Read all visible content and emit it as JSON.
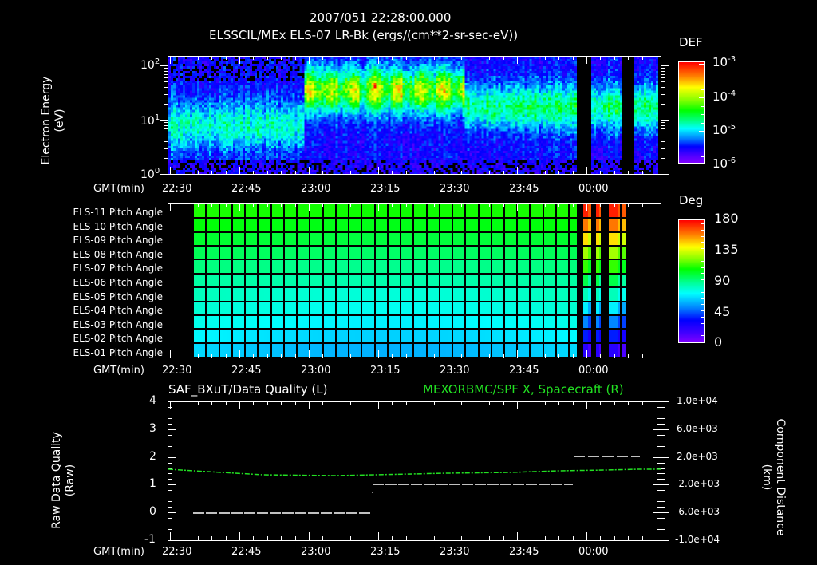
{
  "header": {
    "timestamp": "2007/051 22:28:00.000",
    "subtitle": "ELSSCIL/MEx ELS-07 LR-Bk  (ergs/(cm**2-sr-sec-eV))"
  },
  "colors": {
    "background": "#000000",
    "axes": "#ffffff",
    "spacecraft_series": "#22e022",
    "quality_series": "#ffffff"
  },
  "time_axis": {
    "label": "GMT(min)",
    "ticks": [
      "22:30",
      "22:45",
      "23:00",
      "23:15",
      "23:30",
      "23:45",
      "00:00"
    ]
  },
  "panel1": {
    "ylabel_line1": "Electron Energy",
    "ylabel_line2": "(eV)",
    "yticks": [
      {
        "base": "10",
        "exp": "2"
      },
      {
        "base": "10",
        "exp": "1"
      },
      {
        "base": "10",
        "exp": "0"
      }
    ],
    "colorbar": {
      "title": "DEF",
      "ticks": [
        {
          "base": "10",
          "exp": "-3"
        },
        {
          "base": "10",
          "exp": "-4"
        },
        {
          "base": "10",
          "exp": "-5"
        },
        {
          "base": "10",
          "exp": "-6"
        }
      ]
    }
  },
  "panel2": {
    "rows": [
      "ELS-11 Pitch Angle",
      "ELS-10 Pitch Angle",
      "ELS-09 Pitch Angle",
      "ELS-08 Pitch Angle",
      "ELS-07 Pitch Angle",
      "ELS-06 Pitch Angle",
      "ELS-05 Pitch Angle",
      "ELS-04 Pitch Angle",
      "ELS-03 Pitch Angle",
      "ELS-02 Pitch Angle",
      "ELS-01 Pitch Angle"
    ],
    "colorbar": {
      "title": "Deg",
      "ticks": [
        "180",
        "135",
        "90",
        "45",
        "0"
      ]
    }
  },
  "panel3": {
    "left_title": "SAF_BXuT/Data Quality (L)",
    "right_title": "MEXORBMC/SPF X, Spacecraft (R)",
    "ylabel_left_line1": "Raw Data Quality",
    "ylabel_left_line2": "(Raw)",
    "ylabel_right_line1": "Component Distance",
    "ylabel_right_line2": "(km)",
    "yticks_left": [
      "4",
      "3",
      "2",
      "1",
      "0",
      "-1"
    ],
    "yticks_right": [
      "1.0e+04",
      "6.0e+03",
      "2.0e+03",
      "-2.0e+03",
      "-6.0e+03",
      "-1.0e+04"
    ]
  },
  "chart_data": [
    {
      "type": "heatmap",
      "title": "ELSSCIL/MEx ELS-07 LR-Bk (ergs/(cm**2-sr-sec-eV))",
      "xlabel": "GMT(min)",
      "ylabel": "Electron Energy (eV)",
      "x_ticks": [
        "22:30",
        "22:45",
        "23:00",
        "23:15",
        "23:30",
        "23:45",
        "00:00"
      ],
      "y_scale": "log",
      "ylim": [
        1,
        150
      ],
      "colorbar": {
        "label": "DEF",
        "scale": "log",
        "range": [
          1e-06,
          0.001
        ]
      },
      "description": "Differential energy flux spectrogram. 22:30-23:00: moderate flux (~1e-5) centered 5-20 eV. 23:00-23:35: enhanced flux (~1e-4, green-yellow bursts) at 20-100 eV. 23:35-23:57: steady ~5e-5 at 10-40 eV. After ~23:57 data gaps (black) at ~23:57-23:59, ~00:03-00:05, ~00:11-00:13; intermittent data between."
    },
    {
      "type": "heatmap",
      "title": "ELS Pitch Angle",
      "xlabel": "GMT(min)",
      "categories": [
        "ELS-11",
        "ELS-10",
        "ELS-09",
        "ELS-08",
        "ELS-07",
        "ELS-06",
        "ELS-05",
        "ELS-04",
        "ELS-03",
        "ELS-02",
        "ELS-01"
      ],
      "x_ticks": [
        "22:30",
        "22:45",
        "23:00",
        "23:15",
        "23:30",
        "23:45",
        "00:00"
      ],
      "colorbar": {
        "label": "Deg",
        "range": [
          0,
          180
        ],
        "ticks": [
          0,
          45,
          90,
          135,
          180
        ]
      },
      "description": "Pitch angles ~110 deg (ELS-11) decreasing to ~65 deg (ELS-01) from ~22:35 to ~23:57; after gaps, ELS-11 near 160-180 deg and ELS-01 near 10-30 deg; no data before ~22:35 or after ~00:08."
    },
    {
      "type": "line",
      "title": "SAF_BXuT/Data Quality (L) / MEXORBMC/SPF X, Spacecraft (R)",
      "xlabel": "GMT(min)",
      "x_ticks": [
        "22:30",
        "22:45",
        "23:00",
        "23:15",
        "23:30",
        "23:45",
        "00:00"
      ],
      "ylim_left": [
        -1,
        4
      ],
      "ylim_right": [
        -10000,
        10000
      ],
      "series": [
        {
          "name": "Raw Data Quality (L)",
          "axis": "left",
          "color": "#ffffff",
          "x": [
            "22:33",
            "23:12",
            "23:13",
            "23:56",
            "23:57",
            "00:07"
          ],
          "values": [
            0,
            0,
            1,
            1,
            2,
            2
          ]
        },
        {
          "name": "SPF X Spacecraft (R, km)",
          "axis": "right",
          "color": "#22e022",
          "x": [
            "22:30",
            "23:00",
            "23:15",
            "23:30",
            "23:45",
            "00:00",
            "00:13"
          ],
          "values": [
            1200,
            300,
            200,
            400,
            600,
            900,
            1200
          ]
        }
      ]
    }
  ]
}
